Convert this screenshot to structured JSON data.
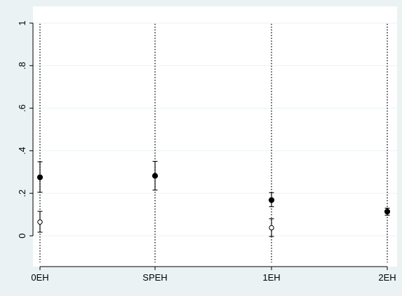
{
  "chart_data": {
    "type": "scatter",
    "title": "",
    "xlabel": "",
    "ylabel": "",
    "categories": [
      "0EH",
      "SPEH",
      "1EH",
      "2EH"
    ],
    "ylim": [
      -0.15,
      1.0
    ],
    "yticks": [
      0,
      0.2,
      0.4,
      0.6,
      0.8,
      1
    ],
    "ytick_labels": [
      "0",
      ".2",
      ".4",
      ".6",
      ".8",
      "1"
    ],
    "grid": true,
    "vertical_reference_lines": "dotted",
    "series": [
      {
        "marker": "filled-circle",
        "points": [
          {
            "category": "0EH",
            "value": 0.275,
            "lower": 0.205,
            "upper": 0.348
          },
          {
            "category": "SPEH",
            "value": 0.282,
            "lower": 0.215,
            "upper": 0.35
          },
          {
            "category": "1EH",
            "value": 0.168,
            "lower": 0.137,
            "upper": 0.203
          },
          {
            "category": "2EH",
            "value": 0.114,
            "lower": 0.097,
            "upper": 0.13
          }
        ]
      },
      {
        "marker": "hollow-circle",
        "points": [
          {
            "category": "0EH",
            "value": 0.065,
            "lower": 0.017,
            "upper": 0.115
          },
          {
            "category": "1EH",
            "value": 0.038,
            "lower": -0.003,
            "upper": 0.08
          }
        ]
      }
    ],
    "colors": {
      "background": "#eaf2f3",
      "plot_area": "#ffffff",
      "gridline": "#eaf2f3",
      "marker": "#000000"
    }
  }
}
